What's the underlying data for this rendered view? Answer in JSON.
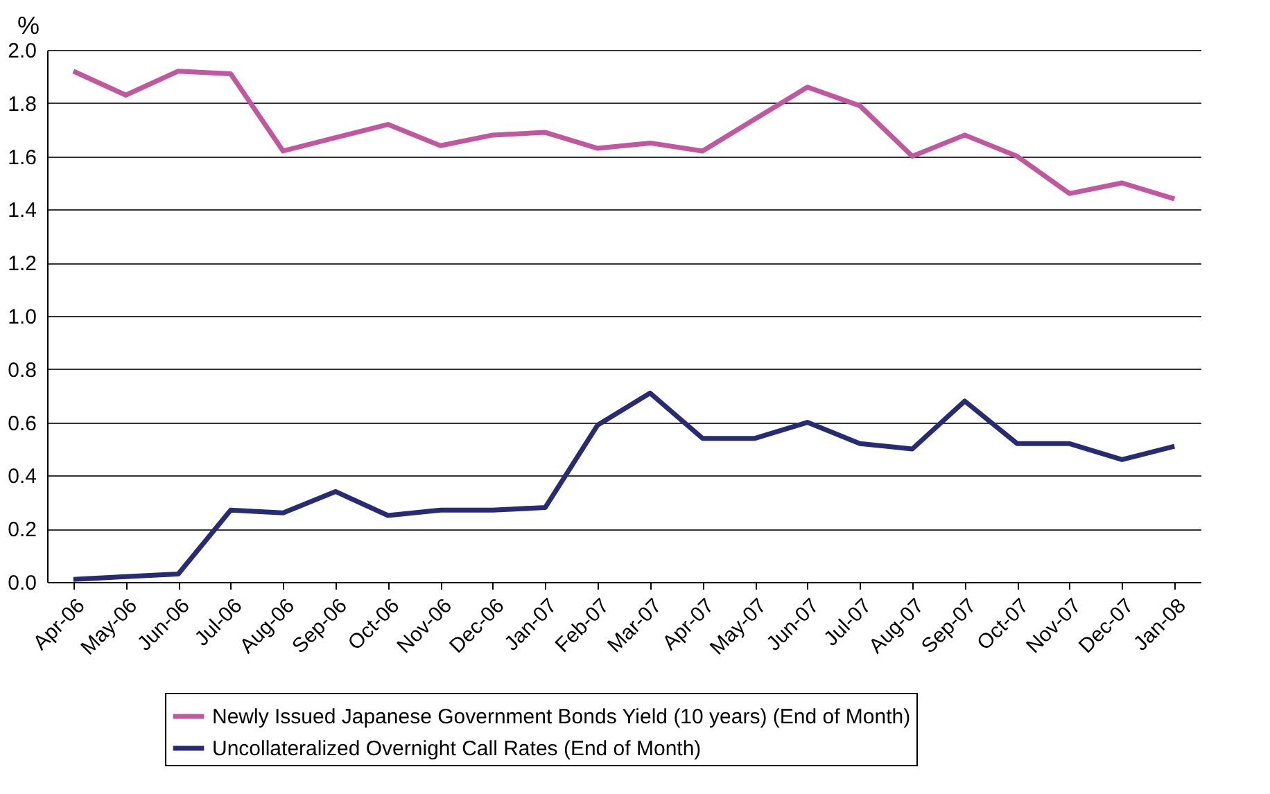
{
  "chart_data": {
    "type": "line",
    "ylabel": "%",
    "categories": [
      "Apr-06",
      "May-06",
      "Jun-06",
      "Jul-06",
      "Aug-06",
      "Sep-06",
      "Oct-06",
      "Nov-06",
      "Dec-06",
      "Jan-07",
      "Feb-07",
      "Mar-07",
      "Apr-07",
      "May-07",
      "Jun-07",
      "Jul-07",
      "Aug-07",
      "Sep-07",
      "Oct-07",
      "Nov-07",
      "Dec-07",
      "Jan-08"
    ],
    "series": [
      {
        "name": "Newly Issued Japanese Government Bonds Yield (10 years) (End of Month)",
        "color": "#c0579f",
        "values": [
          1.92,
          1.83,
          1.92,
          1.91,
          1.62,
          1.67,
          1.72,
          1.64,
          1.68,
          1.69,
          1.63,
          1.65,
          1.62,
          1.74,
          1.86,
          1.79,
          1.6,
          1.68,
          1.6,
          1.46,
          1.5,
          1.44
        ]
      },
      {
        "name": "Uncollateralized Overnight Call Rates (End of Month)",
        "color": "#262b73",
        "values": [
          0.01,
          0.02,
          0.03,
          0.27,
          0.26,
          0.34,
          0.25,
          0.27,
          0.27,
          0.28,
          0.59,
          0.71,
          0.54,
          0.54,
          0.6,
          0.52,
          0.5,
          0.68,
          0.52,
          0.52,
          0.46,
          0.51
        ]
      }
    ],
    "ylim": [
      0,
      2.0
    ],
    "yticks": [
      {
        "value": 0,
        "label": "0.0"
      },
      {
        "value": 0.2,
        "label": "0.2"
      },
      {
        "value": 0.4,
        "label": "0.4"
      },
      {
        "value": 0.6,
        "label": "0.6"
      },
      {
        "value": 0.8,
        "label": "0.8"
      },
      {
        "value": 1,
        "label": "1.0"
      },
      {
        "value": 1.2,
        "label": "1.2"
      },
      {
        "value": 1.4,
        "label": "1.4"
      },
      {
        "value": 1.6,
        "label": "1.6"
      },
      {
        "value": 1.8,
        "label": "1.8"
      },
      {
        "value": 2,
        "label": "2.0"
      }
    ],
    "grid": "y",
    "legend": "bottom",
    "line_style": "solid"
  }
}
